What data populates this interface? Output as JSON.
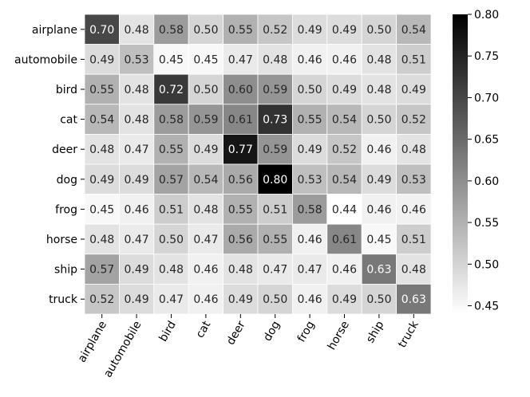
{
  "chart_data": {
    "type": "heatmap",
    "title": "",
    "xlabel": "",
    "ylabel": "",
    "rows": [
      "airplane",
      "automobile",
      "bird",
      "cat",
      "deer",
      "dog",
      "frog",
      "horse",
      "ship",
      "truck"
    ],
    "columns": [
      "airplane",
      "automobile",
      "bird",
      "cat",
      "deer",
      "dog",
      "frog",
      "horse",
      "ship",
      "truck"
    ],
    "values": [
      [
        0.7,
        0.48,
        0.58,
        0.5,
        0.55,
        0.52,
        0.49,
        0.49,
        0.5,
        0.54
      ],
      [
        0.49,
        0.53,
        0.45,
        0.45,
        0.47,
        0.48,
        0.46,
        0.46,
        0.48,
        0.51
      ],
      [
        0.55,
        0.48,
        0.72,
        0.5,
        0.6,
        0.59,
        0.5,
        0.49,
        0.48,
        0.49
      ],
      [
        0.54,
        0.48,
        0.58,
        0.59,
        0.61,
        0.73,
        0.55,
        0.54,
        0.5,
        0.52
      ],
      [
        0.48,
        0.47,
        0.55,
        0.49,
        0.77,
        0.59,
        0.49,
        0.52,
        0.46,
        0.48
      ],
      [
        0.49,
        0.49,
        0.57,
        0.54,
        0.56,
        0.8,
        0.53,
        0.54,
        0.49,
        0.53
      ],
      [
        0.45,
        0.46,
        0.51,
        0.48,
        0.55,
        0.51,
        0.58,
        0.44,
        0.46,
        0.46
      ],
      [
        0.48,
        0.47,
        0.5,
        0.47,
        0.56,
        0.55,
        0.46,
        0.61,
        0.45,
        0.51
      ],
      [
        0.57,
        0.49,
        0.48,
        0.46,
        0.48,
        0.47,
        0.47,
        0.46,
        0.63,
        0.48
      ],
      [
        0.52,
        0.49,
        0.47,
        0.46,
        0.49,
        0.5,
        0.46,
        0.49,
        0.5,
        0.63
      ]
    ],
    "value_format": "0.00",
    "colormap": "Greys",
    "color_range": [
      0.44,
      0.8
    ],
    "colorbar": {
      "ticks": [
        0.45,
        0.5,
        0.55,
        0.6,
        0.65,
        0.7,
        0.75,
        0.8
      ],
      "tick_labels": [
        "0.45",
        "0.50",
        "0.55",
        "0.60",
        "0.65",
        "0.70",
        "0.75",
        "0.80"
      ],
      "placement": "right"
    },
    "x_tick_rotation": 60,
    "cell_border_color": "#ffffff",
    "grid": false
  }
}
